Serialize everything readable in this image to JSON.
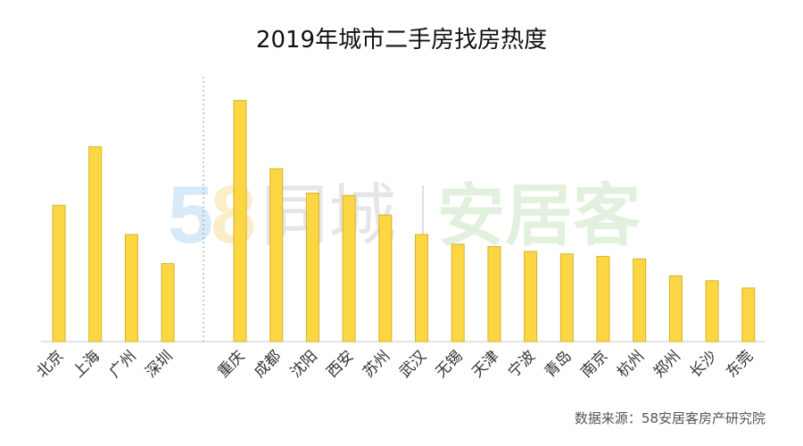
{
  "chart_data": {
    "type": "bar",
    "title": "2019年城市二手房找房热度",
    "categories": [
      "北京",
      "上海",
      "广州",
      "深圳",
      "重庆",
      "成都",
      "沈阳",
      "西安",
      "苏州",
      "武汉",
      "无锡",
      "天津",
      "宁波",
      "青岛",
      "南京",
      "杭州",
      "郑州",
      "长沙",
      "东莞"
    ],
    "values": [
      56,
      80,
      44,
      32,
      99,
      71,
      61,
      60,
      52,
      44,
      40,
      39,
      37,
      36,
      35,
      34,
      27,
      25,
      22
    ],
    "groups": [
      {
        "categories": [
          "北京",
          "上海",
          "广州",
          "深圳"
        ]
      },
      {
        "categories": [
          "重庆",
          "成都",
          "沈阳",
          "西安",
          "苏州",
          "武汉",
          "无锡",
          "天津",
          "宁波",
          "青岛",
          "南京",
          "杭州",
          "郑州",
          "长沙",
          "东莞"
        ]
      }
    ],
    "ylim": [
      0,
      100
    ],
    "xlabel": "",
    "ylabel": "",
    "grid": false,
    "bar_color": "#fcd643",
    "bar_edge_color": "#d7b32a"
  },
  "source": "数据来源：58安居客房产研究院",
  "watermark": {
    "digits": "58",
    "left_text": "同城",
    "right_text": "安居客",
    "colors": [
      "#f6b8b8",
      "#b9d9f2",
      "#f9e09a",
      "#d7d7d7",
      "#cfe8c8"
    ]
  }
}
